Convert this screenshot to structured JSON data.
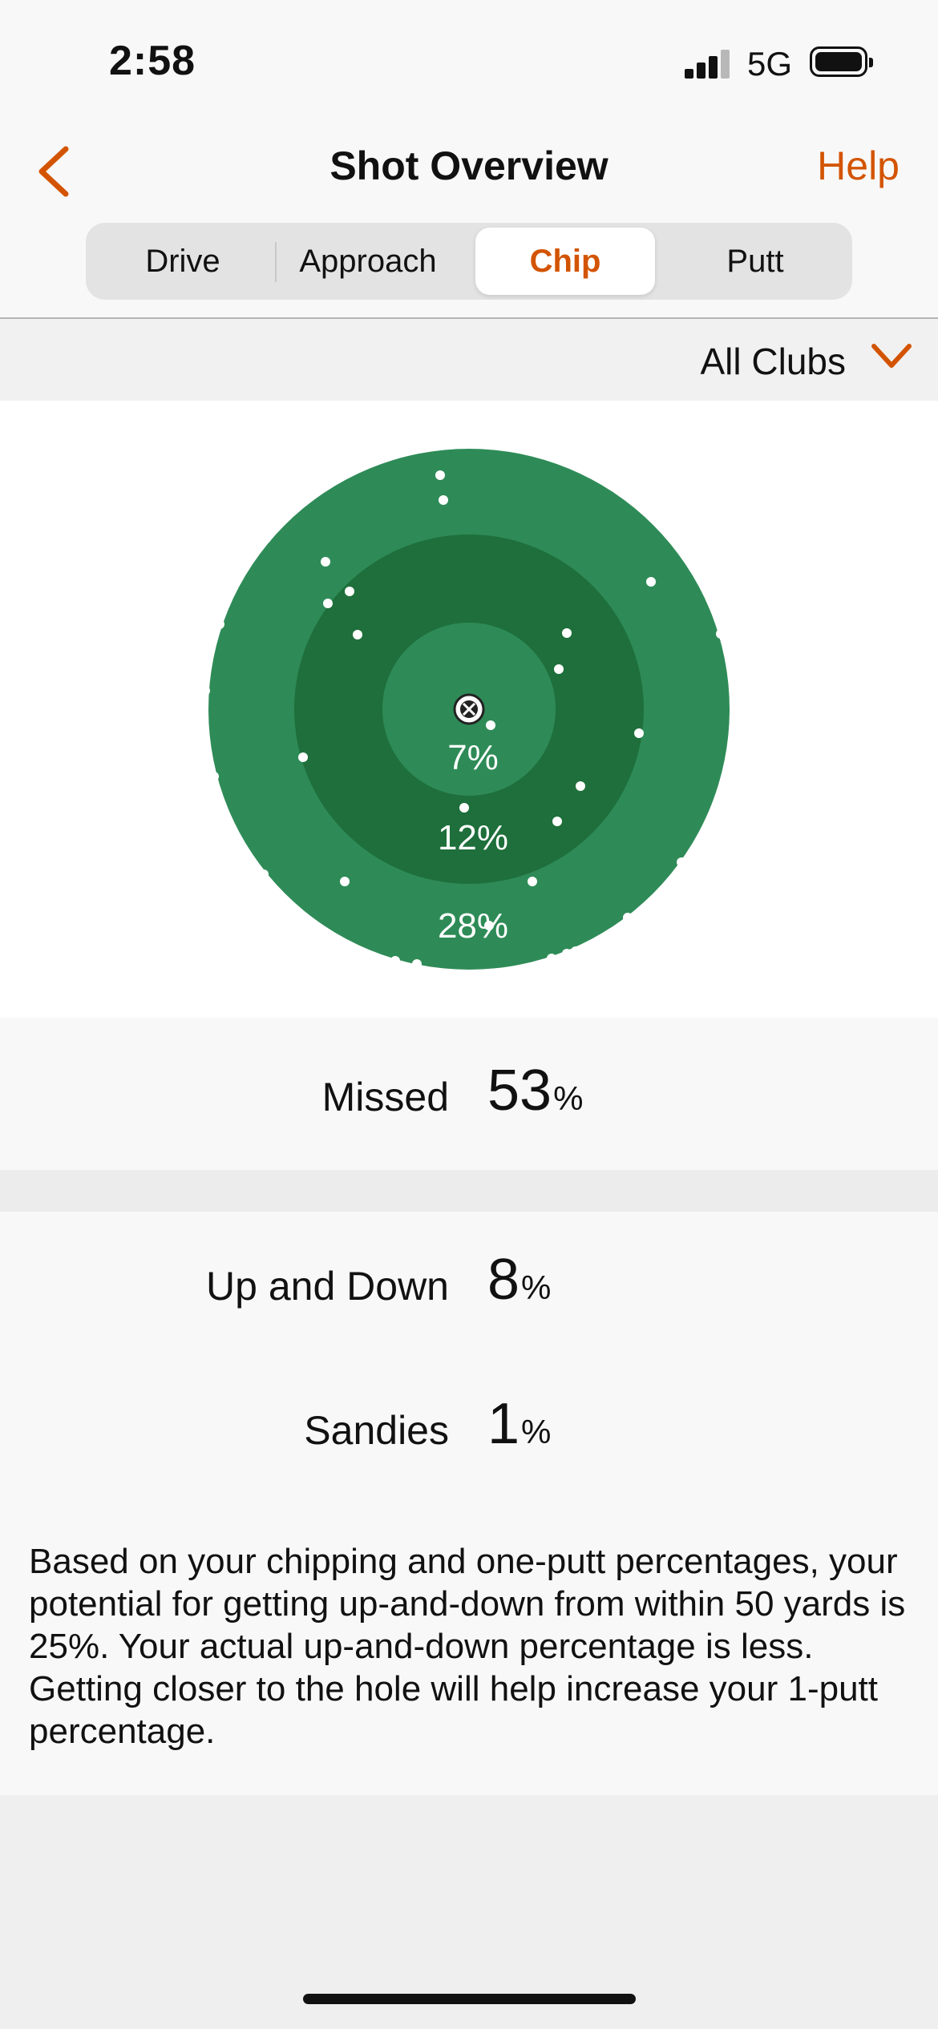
{
  "status_bar": {
    "time": "2:58",
    "network": "5G"
  },
  "header": {
    "title": "Shot Overview",
    "help_label": "Help"
  },
  "tabs": [
    {
      "label": "Drive",
      "active": false
    },
    {
      "label": "Approach",
      "active": false
    },
    {
      "label": "Chip",
      "active": true
    },
    {
      "label": "Putt",
      "active": false
    }
  ],
  "filter": {
    "label": "All Clubs"
  },
  "target": {
    "rings": [
      {
        "label": "7%",
        "value": 7
      },
      {
        "label": "12%",
        "value": 12
      },
      {
        "label": "28%",
        "value": 28
      }
    ]
  },
  "stats": {
    "missed": {
      "label": "Missed",
      "value": "53",
      "unit": "%"
    },
    "up_and_down": {
      "label": "Up and Down",
      "value": "8",
      "unit": "%"
    },
    "sandies": {
      "label": "Sandies",
      "value": "1",
      "unit": "%"
    }
  },
  "description": "Based on your chipping and one-putt percentages, your potential for getting up-and-down from within 50 yards is 25%. Your actual up-and-down percentage is less. Getting closer to the hole will help increase your 1-putt percentage.",
  "colors": {
    "accent": "#d35400",
    "outer_ring": "#2e8b57",
    "middle_ring": "#1e6f3b",
    "inner_ring": "#2e8b57",
    "ball": "#ffffff"
  }
}
